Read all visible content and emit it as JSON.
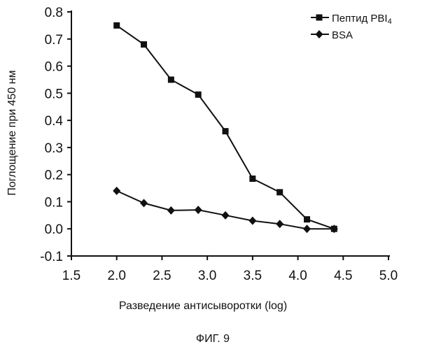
{
  "chart_data": {
    "type": "line",
    "title": "",
    "xlabel": "Разведение антисыворотки (log)",
    "ylabel": "Поглощение при 450 нм",
    "xlim": [
      1.5,
      5.0
    ],
    "ylim": [
      -0.1,
      0.8
    ],
    "x_ticks": [
      1.5,
      2.0,
      2.5,
      3.0,
      3.5,
      4.0,
      4.5,
      5.0
    ],
    "x_tick_labels": [
      "1.5",
      "2.0",
      "2.5",
      "3.0",
      "3.5",
      "4.0",
      "4.5",
      "5.0"
    ],
    "y_ticks": [
      -0.1,
      0.0,
      0.1,
      0.2,
      0.3,
      0.4,
      0.5,
      0.6,
      0.7,
      0.8
    ],
    "y_tick_labels": [
      "-0.1",
      "0.0",
      "0.1",
      "0.2",
      "0.3",
      "0.4",
      "0.5",
      "0.6",
      "0.7",
      "0.8"
    ],
    "grid": false,
    "legend_position": "top-right",
    "series": [
      {
        "name": "Пептид PBI",
        "name_subscript": "4",
        "marker": "square",
        "x": [
          2.0,
          2.3,
          2.6,
          2.9,
          3.2,
          3.5,
          3.8,
          4.1,
          4.4
        ],
        "values": [
          0.75,
          0.68,
          0.55,
          0.495,
          0.36,
          0.185,
          0.135,
          0.035,
          0.0
        ]
      },
      {
        "name": "BSA",
        "marker": "diamond",
        "x": [
          2.0,
          2.3,
          2.6,
          2.9,
          3.2,
          3.5,
          3.8,
          4.1,
          4.4
        ],
        "values": [
          0.14,
          0.095,
          0.068,
          0.07,
          0.05,
          0.03,
          0.018,
          0.0,
          0.0
        ]
      }
    ]
  },
  "caption": "ФИГ. 9",
  "colors": {
    "ink": "#111111",
    "background": "#ffffff"
  }
}
